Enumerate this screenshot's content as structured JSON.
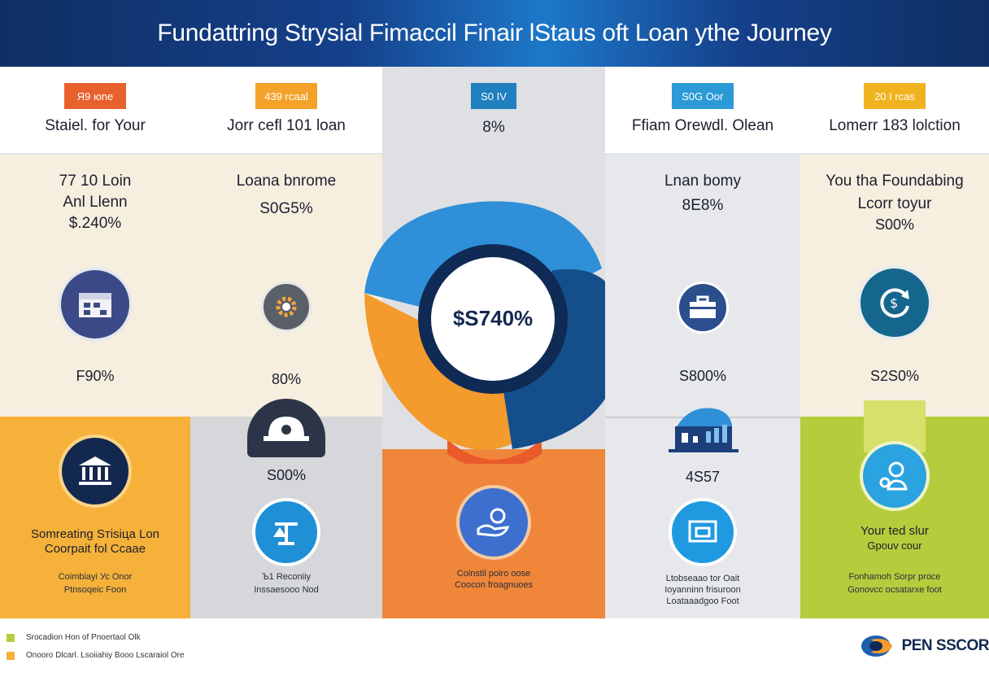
{
  "header": {
    "title": "Fundattring Strysial Fimaccil Finair lStaus oft Loan ythe Journey"
  },
  "columns": [
    {
      "badge": "Я9 юnе",
      "badge_color": "#e8602c",
      "title": "Staiel. for Your",
      "mid_lines": [
        "77 10 Loin",
        "Anl Llenn",
        "$.240%"
      ],
      "mid_pct": "F90%",
      "bottom_heading": [
        "Somreating Sтisiцa Lon",
        "Coorpait fol Ccaae"
      ],
      "bottom_small": [
        "Coimbiayi Ус Onor",
        "Ptnsoqeic Foon"
      ],
      "top_bg": "#ffffff",
      "mid_bg": "#f6efdf",
      "bot_bg": "#f6b13a",
      "icon_mid": "calendar-icon",
      "icon_bot": "bank-icon"
    },
    {
      "badge": "439 rcaal",
      "badge_color": "#f3a32a",
      "title": "Jorr cefl 101 loan",
      "mid_lines": [
        "Loana bnrome",
        "S0G5%"
      ],
      "mid_pct": "80%",
      "bottom_pct": "S00%",
      "bottom_small": [
        "Ъ1 Reconiiy",
        "Inssaesooo Nod"
      ],
      "top_bg": "#ffffff",
      "mid_bg": "#f6efdf",
      "bot_bg": "#d6d7da",
      "icon_mid": "gear-icon",
      "icon_top_bot": "hardhat-icon",
      "icon_bot": "scale-icon"
    },
    {
      "badge": "S0 IV",
      "badge_color": "#1f7fbf",
      "title": "8%",
      "bottom_small": [
        "Coinstil poiro oose",
        "Coocon froagnuoes"
      ],
      "top_bg": "#dfe0e3",
      "mid_bg": "#dfe0e3",
      "bot_bg": "#f0863a",
      "icon_bot": "hand-coin-icon"
    },
    {
      "badge": "S0G Ooг",
      "badge_color": "#2b9ad6",
      "title": "Ffiam Orewdl. Olean",
      "mid_lines": [
        "Lnan bomy",
        "8E8%"
      ],
      "mid_pct": "S800%",
      "bottom_pct": "4S57",
      "bottom_small": [
        "Ltobseaao tor Oait",
        "Ioyanninn frisuroon",
        "Loataaadgoo Foot"
      ],
      "top_bg": "#ffffff",
      "mid_bg": "#e7e8eb",
      "bot_bg": "#e7e8eb",
      "icon_mid": "briefcase-icon",
      "icon_top_bot": "city-chart-icon",
      "icon_bot": "card-icon"
    },
    {
      "badge": "20 I rcas",
      "badge_color": "#f0b21f",
      "title": "Lomerr 183 lolction",
      "mid_lines": [
        "You tha Foundabing",
        "Lcorr toyur",
        "S00%"
      ],
      "mid_pct": "S2S0%",
      "bottom_heading": [
        "Your ted slur",
        "Gpouv cour"
      ],
      "bottom_small": [
        "Fonhamoh Sorpr proce",
        "Gonovcc ocsatarxe foot"
      ],
      "top_bg": "#ffffff",
      "mid_bg": "#f6efdf",
      "bot_bg": "#b5cd3d",
      "icon_mid": "refresh-coin-icon",
      "icon_bot": "people-coin-icon"
    }
  ],
  "center": {
    "value": "$S740%",
    "colors": {
      "light_blue": "#2f8fd8",
      "dark_blue": "#144f8c",
      "orange": "#f0862e",
      "yellow": "#f6b13a",
      "navy": "#0f2a55"
    }
  },
  "footer": {
    "legend": [
      {
        "color": "#b5cd3d",
        "text": "Srocadion Hon of Pnoertaol Olk"
      },
      {
        "color": "#f6b13a",
        "text": "Onooro Dlcarl. Lsoiiahiy Booo Lscaraiol Ore"
      }
    ],
    "brand": "PEN SSCOR",
    "brand_icon": "swirl-logo-icon"
  }
}
